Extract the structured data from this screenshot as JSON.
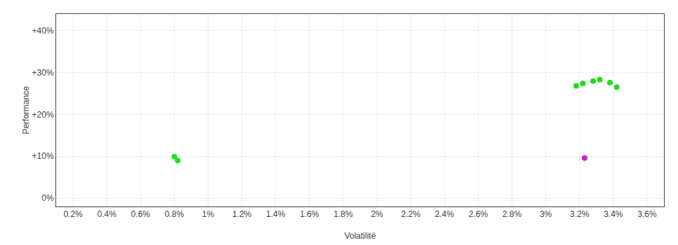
{
  "chart_data": {
    "type": "scatter",
    "xlabel": "Volatilité",
    "ylabel": "Performance",
    "xlim": [
      0.001,
      0.037
    ],
    "ylim": [
      -0.02,
      0.44
    ],
    "xticks": [
      {
        "value": 0.002,
        "label": "0.2%"
      },
      {
        "value": 0.004,
        "label": "0.4%"
      },
      {
        "value": 0.006,
        "label": "0.6%"
      },
      {
        "value": 0.008,
        "label": "0.8%"
      },
      {
        "value": 0.01,
        "label": "1%"
      },
      {
        "value": 0.012,
        "label": "1.2%"
      },
      {
        "value": 0.014,
        "label": "1.4%"
      },
      {
        "value": 0.016,
        "label": "1.6%"
      },
      {
        "value": 0.018,
        "label": "1.8%"
      },
      {
        "value": 0.02,
        "label": "2%"
      },
      {
        "value": 0.022,
        "label": "2.2%"
      },
      {
        "value": 0.024,
        "label": "2.4%"
      },
      {
        "value": 0.026,
        "label": "2.6%"
      },
      {
        "value": 0.028,
        "label": "2.8%"
      },
      {
        "value": 0.03,
        "label": "3%"
      },
      {
        "value": 0.032,
        "label": "3.2%"
      },
      {
        "value": 0.034,
        "label": "3.4%"
      },
      {
        "value": 0.036,
        "label": "3.6%"
      }
    ],
    "yticks": [
      {
        "value": 0.0,
        "label": "0%"
      },
      {
        "value": 0.1,
        "label": "+10%"
      },
      {
        "value": 0.2,
        "label": "+20%"
      },
      {
        "value": 0.3,
        "label": "+30%"
      },
      {
        "value": 0.4,
        "label": "+40%"
      }
    ],
    "grid": true,
    "marker": "circle",
    "series": [
      {
        "color": "#22dd22",
        "x": [
          0.008,
          0.0082,
          0.0318,
          0.0322,
          0.0328,
          0.0332,
          0.0338,
          0.0342
        ],
        "values": [
          0.099,
          0.09,
          0.268,
          0.274,
          0.28,
          0.283,
          0.276,
          0.265
        ]
      },
      {
        "color": "#cc22cc",
        "x": [
          0.0323
        ],
        "values": [
          0.096
        ]
      }
    ]
  }
}
